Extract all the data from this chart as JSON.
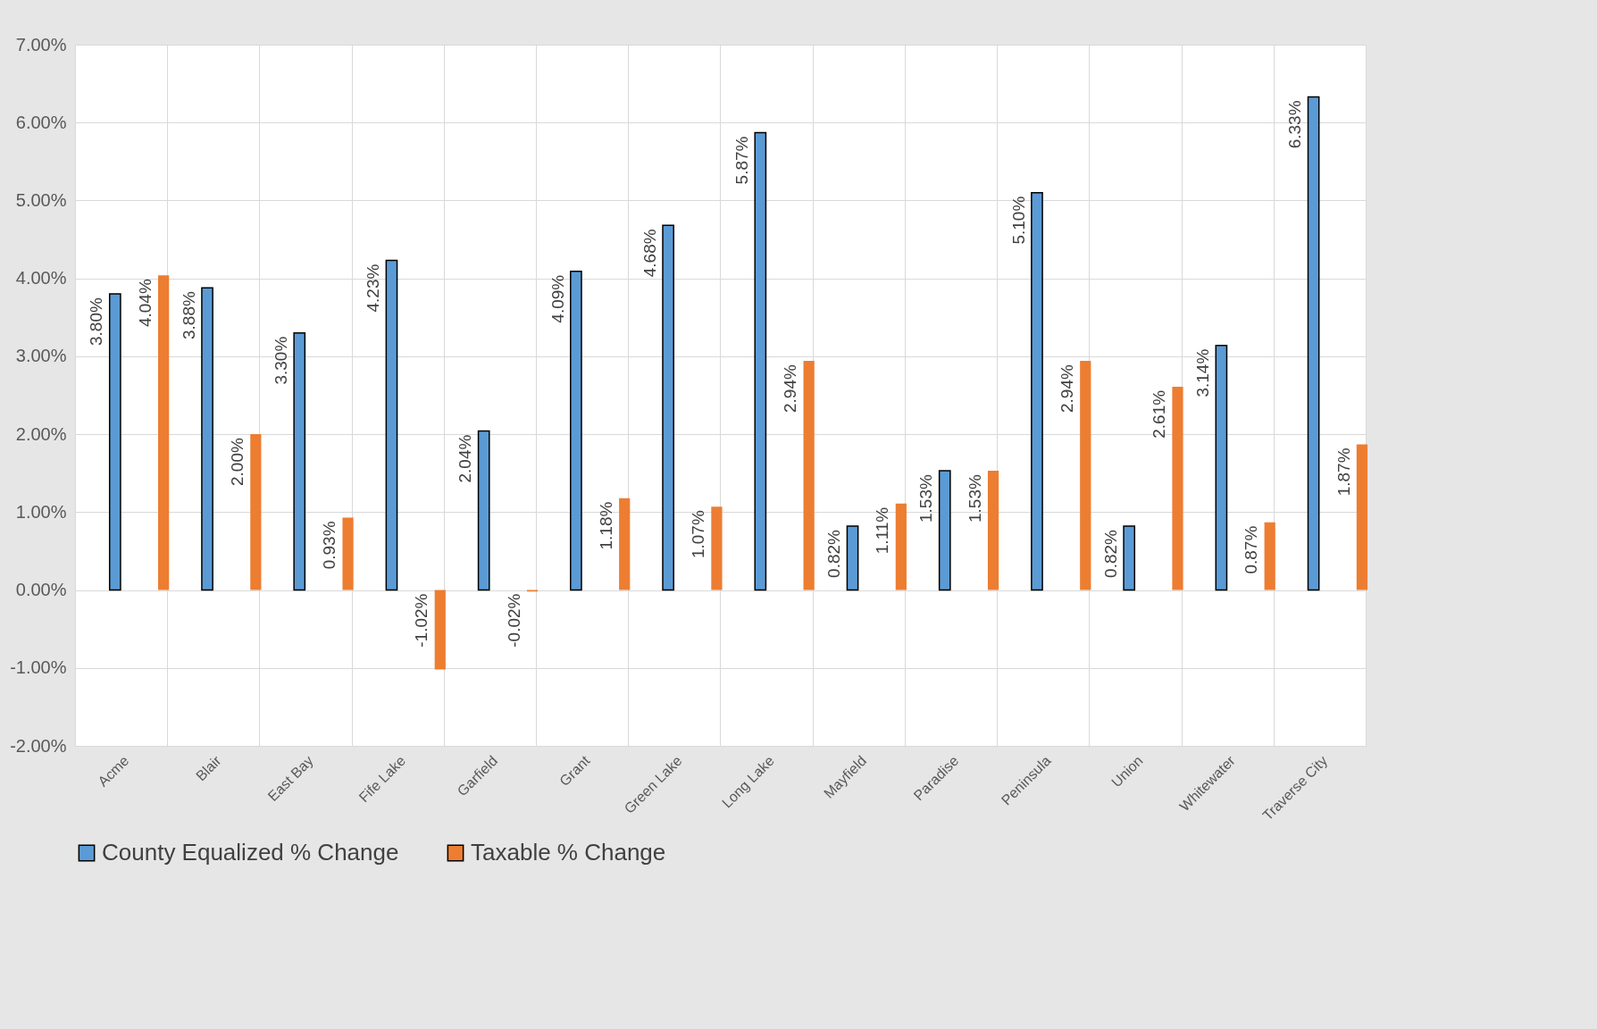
{
  "chart_data": {
    "type": "bar",
    "categories": [
      "Acme",
      "Blair",
      "East Bay",
      "Fife Lake",
      "Garfield",
      "Grant",
      "Green Lake",
      "Long Lake",
      "Mayfield",
      "Paradise",
      "Peninsula",
      "Union",
      "Whitewater",
      "Traverse City"
    ],
    "series": [
      {
        "name": "County Equalized % Change",
        "color": "#5b9bd5",
        "values": [
          3.8,
          3.88,
          3.3,
          4.23,
          2.04,
          4.09,
          4.68,
          5.87,
          0.82,
          1.53,
          5.1,
          0.82,
          3.14,
          6.33
        ],
        "value_labels": [
          "3.80%",
          "3.88%",
          "3.30%",
          "4.23%",
          "2.04%",
          "4.09%",
          "4.68%",
          "5.87%",
          "0.82%",
          "1.53%",
          "5.10%",
          "0.82%",
          "3.14%",
          "6.33%"
        ]
      },
      {
        "name": "Taxable % Change",
        "color": "#ed7d31",
        "values": [
          4.04,
          2.0,
          0.93,
          -1.02,
          -0.02,
          1.18,
          1.07,
          2.94,
          1.11,
          1.53,
          2.94,
          2.61,
          0.87,
          1.87
        ],
        "value_labels": [
          "4.04%",
          "2.00%",
          "0.93%",
          "-1.02%",
          "-0.02%",
          "1.18%",
          "1.07%",
          "2.94%",
          "1.11%",
          "1.53%",
          "2.94%",
          "2.61%",
          "0.87%",
          "1.87%"
        ]
      }
    ],
    "ylim": [
      -2,
      7
    ],
    "yticks": [
      {
        "value": -2,
        "label": "-2.00%"
      },
      {
        "value": -1,
        "label": "-1.00%"
      },
      {
        "value": 0,
        "label": "0.00%"
      },
      {
        "value": 1,
        "label": "1.00%"
      },
      {
        "value": 2,
        "label": "2.00%"
      },
      {
        "value": 3,
        "label": "3.00%"
      },
      {
        "value": 4,
        "label": "4.00%"
      },
      {
        "value": 5,
        "label": "5.00%"
      },
      {
        "value": 6,
        "label": "6.00%"
      },
      {
        "value": 7,
        "label": "7.00%"
      }
    ],
    "grid": true,
    "legend": "bottom"
  }
}
